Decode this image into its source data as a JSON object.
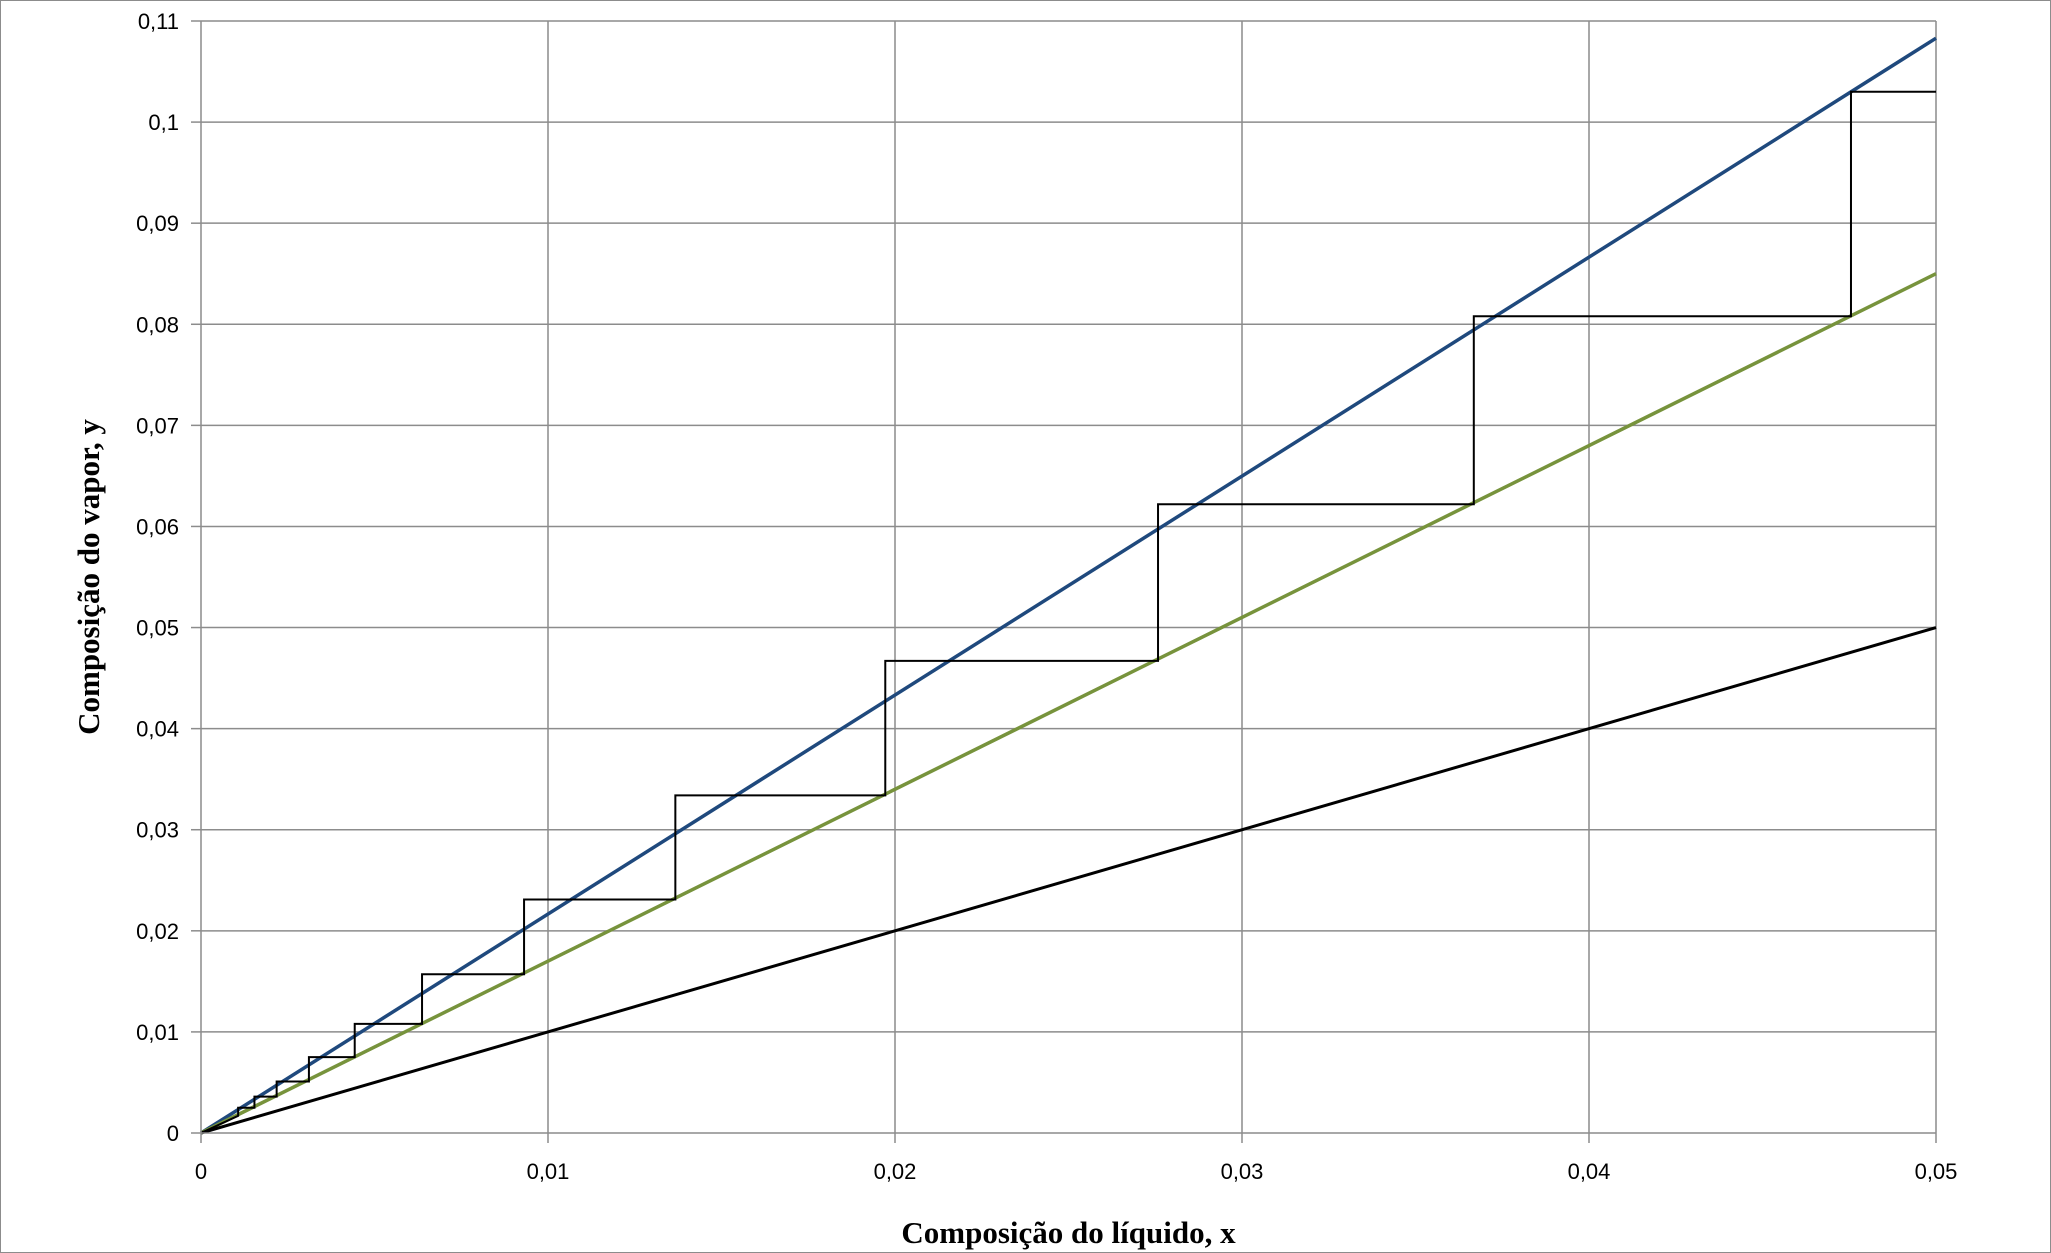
{
  "chart_data": {
    "type": "line",
    "title": "",
    "xlabel": "Composição do líquido, x",
    "ylabel": "Composição do vapor, y",
    "xlim": [
      0,
      0.05
    ],
    "ylim": [
      0,
      0.11
    ],
    "grid": true,
    "x_ticks": [
      0,
      0.01,
      0.02,
      0.03,
      0.04,
      0.05
    ],
    "x_tick_labels": [
      "0",
      "0,01",
      "0,02",
      "0,03",
      "0,04",
      "0,05"
    ],
    "y_ticks": [
      0,
      0.01,
      0.02,
      0.03,
      0.04,
      0.05,
      0.06,
      0.07,
      0.08,
      0.09,
      0.1,
      0.11
    ],
    "y_tick_labels": [
      "0",
      "0,01",
      "0,02",
      "0,03",
      "0,04",
      "0,05",
      "0,06",
      "0,07",
      "0,08",
      "0,09",
      "0,1",
      "0,11"
    ],
    "series": [
      {
        "color": "#1f497d",
        "x": [
          0,
          0.05
        ],
        "y": [
          0,
          0.1083
        ]
      },
      {
        "color": "#77933c",
        "x": [
          0,
          0.05
        ],
        "y": [
          0,
          0.085
        ]
      },
      {
        "color": "#000000",
        "x": [
          0,
          0.05
        ],
        "y": [
          0,
          0.05
        ]
      },
      {
        "color": "#000000",
        "x": [
          0.05,
          0.04755,
          0.04755,
          0.03668,
          0.03668,
          0.02758,
          0.02758,
          0.01972,
          0.01972,
          0.01367,
          0.01367,
          0.00931,
          0.00931,
          0.00637,
          0.00637,
          0.00443,
          0.00443,
          0.00311,
          0.00311,
          0.00218,
          0.00218,
          0.00154,
          0.00154,
          0.00107,
          0.00107,
          0
        ],
        "y": [
          0.103,
          0.103,
          0.0808,
          0.0808,
          0.0622,
          0.0622,
          0.0467,
          0.0467,
          0.0334,
          0.0334,
          0.0231,
          0.0231,
          0.0157,
          0.0157,
          0.0108,
          0.0108,
          0.0075,
          0.0075,
          0.0051,
          0.0051,
          0.0036,
          0.0036,
          0.0025,
          0.0025,
          0.0017,
          0
        ]
      }
    ]
  }
}
